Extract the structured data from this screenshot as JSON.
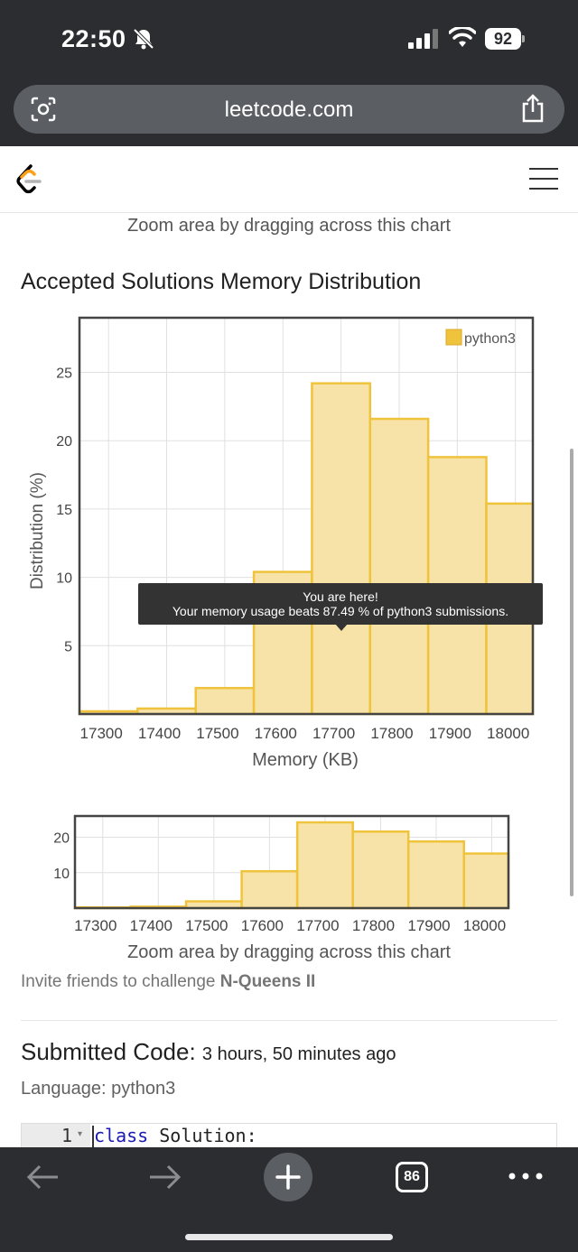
{
  "status_bar": {
    "time": "22:50",
    "battery": "92",
    "icons": [
      "bell-slash-icon",
      "signal-icon",
      "wifi-icon",
      "battery-icon"
    ]
  },
  "browser": {
    "url": "leetcode.com",
    "icons": [
      "lens-icon",
      "share-icon",
      "back-icon",
      "forward-icon",
      "plus-icon",
      "tabs-icon",
      "more-icon"
    ],
    "tab_count": "86"
  },
  "site": {
    "logo": "leetcode-logo-icon",
    "menu": "hamburger-menu-icon"
  },
  "page": {
    "zoom_hint_top": "Zoom area by dragging across this chart",
    "section_title": "Accepted Solutions Memory Distribution",
    "zoom_hint_bottom": "Zoom area by dragging across this chart",
    "invite_prefix": "Invite friends to challenge ",
    "invite_problem": "N-Queens II",
    "submitted_label": "Submitted Code:",
    "submitted_time": "3 hours, 50 minutes ago",
    "language_line": "Language: python3",
    "code_line_number": "1",
    "code_keyword": "class",
    "code_rest": " Solution:"
  },
  "tooltip": {
    "line1": "You are here!",
    "line2": "Your memory usage beats 87.49 % of python3 submissions."
  },
  "chart_data": [
    {
      "type": "bar",
      "series": [
        {
          "name": "python3",
          "color": "#f0c33c",
          "fill": "#f7e3a8"
        }
      ],
      "bins": [
        {
          "x0": 17250,
          "x1": 17350,
          "value": 0.2
        },
        {
          "x0": 17350,
          "x1": 17450,
          "value": 0.4
        },
        {
          "x0": 17450,
          "x1": 17550,
          "value": 1.9
        },
        {
          "x0": 17550,
          "x1": 17650,
          "value": 10.4
        },
        {
          "x0": 17650,
          "x1": 17750,
          "value": 24.2
        },
        {
          "x0": 17750,
          "x1": 17850,
          "value": 21.6
        },
        {
          "x0": 17850,
          "x1": 17950,
          "value": 18.8
        },
        {
          "x0": 17950,
          "x1": 18030,
          "value": 15.4
        }
      ],
      "xticks": [
        17300,
        17400,
        17500,
        17600,
        17700,
        17800,
        17900,
        18000
      ],
      "yticks": [
        5,
        10,
        15,
        20,
        25
      ],
      "xlim": [
        17225,
        17950
      ],
      "ylim": [
        0,
        29
      ],
      "xlabel": "Memory (KB)",
      "ylabel": "Distribution (%)",
      "legend": "top-right",
      "grid": true
    },
    {
      "type": "bar",
      "role": "overview",
      "bins_same_as": 0,
      "xticks": [
        17300,
        17400,
        17500,
        17600,
        17700,
        17800,
        17900,
        18000
      ],
      "yticks": [
        10,
        20
      ],
      "ylim": [
        0,
        26
      ],
      "grid": true
    }
  ]
}
